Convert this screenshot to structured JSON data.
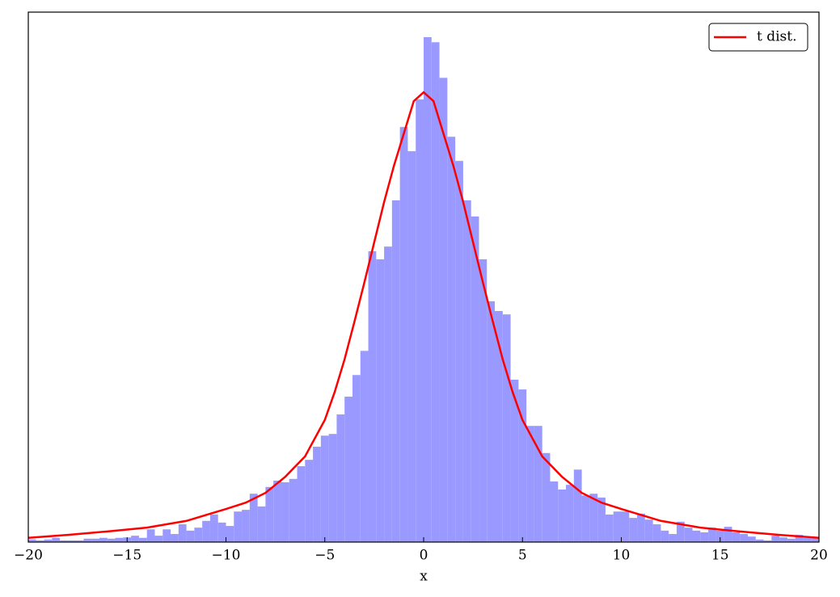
{
  "chart_data": {
    "type": "histogram",
    "xlabel": "x",
    "bins": [
      -20,
      -19.6,
      -19.2,
      -18.8,
      -18.4,
      -18,
      -17.6,
      -17.2,
      -16.8,
      -16.4,
      -16,
      -15.6,
      -15.2,
      -14.8,
      -14.4,
      -14,
      -13.6,
      -13.2,
      -12.8,
      -12.4,
      -12,
      -11.6,
      -11.2,
      -10.8,
      -10.4,
      -10,
      -9.6,
      -9.2,
      -8.8,
      -8.4,
      -8,
      -7.6,
      -7.2,
      -6.8,
      -6.4,
      -6,
      -5.6,
      -5.2,
      -4.8,
      -4.4,
      -4,
      -3.6,
      -3.2,
      -2.8,
      -2.4,
      -2,
      -1.6,
      -1.2,
      -0.8,
      -0.4,
      0,
      0.4,
      0.8,
      1.2,
      1.6,
      2,
      2.4,
      2.8,
      3.2,
      3.6,
      4,
      4.4,
      4.8,
      5.2,
      5.6,
      6,
      6.4,
      6.8,
      7.2,
      7.6,
      8,
      8.4,
      8.8,
      9.2,
      9.6,
      10,
      10.4,
      10.8,
      11.2,
      11.6,
      12,
      12.4,
      12.8,
      13.2,
      13.6,
      14,
      14.4,
      14.8,
      15.2,
      15.6,
      16,
      16.4,
      16.8,
      17.2,
      17.6,
      18,
      18.4,
      18.8,
      19.2,
      19.6,
      20
    ],
    "values": [
      0.0006,
      0.0004,
      0.0006,
      0.001,
      0.0004,
      0.0004,
      0.0004,
      0.0008,
      0.0008,
      0.001,
      0.0008,
      0.001,
      0.0011,
      0.0015,
      0.001,
      0.003,
      0.0015,
      0.003,
      0.0019,
      0.0042,
      0.0027,
      0.0034,
      0.005,
      0.0065,
      0.0046,
      0.0038,
      0.0072,
      0.0076,
      0.0114,
      0.0084,
      0.013,
      0.0145,
      0.0141,
      0.0149,
      0.0179,
      0.0194,
      0.0225,
      0.0251,
      0.0255,
      0.0301,
      0.0343,
      0.0394,
      0.0451,
      0.0686,
      0.0667,
      0.0697,
      0.0806,
      0.0979,
      0.0922,
      0.1044,
      0.1191,
      0.1179,
      0.1095,
      0.0956,
      0.0899,
      0.0806,
      0.0768,
      0.0667,
      0.0568,
      0.0545,
      0.0537,
      0.0383,
      0.036,
      0.0274,
      0.0274,
      0.021,
      0.0143,
      0.0124,
      0.0135,
      0.0171,
      0.011,
      0.0114,
      0.0105,
      0.0065,
      0.0072,
      0.0072,
      0.0057,
      0.0067,
      0.0053,
      0.0042,
      0.0027,
      0.0019,
      0.0048,
      0.0034,
      0.0027,
      0.0023,
      0.0034,
      0.0027,
      0.0036,
      0.0023,
      0.0019,
      0.0013,
      0.0006,
      0.0004,
      0.0015,
      0.0011,
      0.0008,
      0.0017,
      0.001,
      0.0011
    ],
    "color": "#9999ff",
    "series": [
      {
        "name": "t dist.",
        "type": "line",
        "color": "#ff0000",
        "x": [
          -20,
          -18,
          -16,
          -14,
          -12,
          -10,
          -9,
          -8,
          -7,
          -6,
          -5,
          -4.5,
          -4,
          -3.5,
          -3,
          -2.5,
          -2,
          -1.5,
          -1,
          -0.5,
          0,
          0.5,
          1,
          1.5,
          2,
          2.5,
          3,
          3.5,
          4,
          4.5,
          5,
          6,
          7,
          8,
          9,
          10,
          12,
          14,
          16,
          18,
          20
        ],
        "values": [
          0.001,
          0.0017,
          0.0025,
          0.0034,
          0.005,
          0.0078,
          0.0093,
          0.0116,
          0.0154,
          0.0202,
          0.0288,
          0.0354,
          0.0431,
          0.052,
          0.0612,
          0.0707,
          0.0802,
          0.0888,
          0.0964,
          0.104,
          0.1061,
          0.104,
          0.0964,
          0.0888,
          0.0802,
          0.0707,
          0.0612,
          0.052,
          0.0431,
          0.0354,
          0.0288,
          0.0202,
          0.0154,
          0.0116,
          0.0093,
          0.0078,
          0.005,
          0.0034,
          0.0025,
          0.0017,
          0.001
        ]
      }
    ],
    "xlim": [
      -20,
      20
    ],
    "ylim": [
      0,
      0.125
    ],
    "xticks": [
      {
        "value": -20,
        "label": "−20"
      },
      {
        "value": -15,
        "label": "−15"
      },
      {
        "value": -10,
        "label": "−10"
      },
      {
        "value": -5,
        "label": "−5"
      },
      0,
      5,
      10,
      15,
      20
    ],
    "legend": "upper right"
  }
}
